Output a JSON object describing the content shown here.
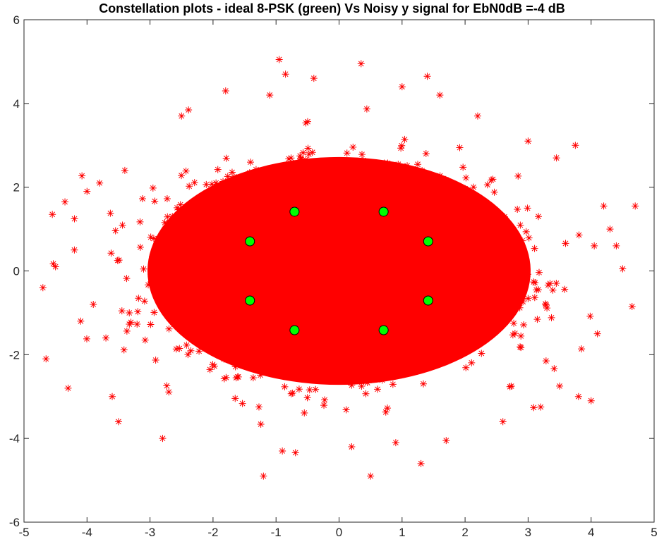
{
  "chart_data": {
    "type": "scatter",
    "title": "Constellation plots - ideal 8-PSK (green) Vs Noisy y signal for EbN0dB =-4 dB",
    "xlabel": "",
    "ylabel": "",
    "xlim": [
      -5,
      5
    ],
    "ylim": [
      -6,
      6
    ],
    "x_ticks": [
      "-5",
      "-4",
      "-3",
      "-2",
      "-1",
      "0",
      "1",
      "2",
      "3",
      "4",
      "5"
    ],
    "y_ticks": [
      "-6",
      "-4",
      "-2",
      "0",
      "2",
      "4",
      "6"
    ],
    "grid": false,
    "series": [
      {
        "marker": "asterisk",
        "color": "#ff0000",
        "dense_cloud": {
          "center": [
            0,
            0
          ],
          "x_extent": [
            -3.8,
            3.8
          ],
          "y_extent": [
            -3.3,
            3.5
          ]
        },
        "outlier_points": [
          [
            -4.7,
            -0.4
          ],
          [
            -4.65,
            -2.1
          ],
          [
            -4.55,
            1.35
          ],
          [
            -4.5,
            0.1
          ],
          [
            -4.35,
            1.65
          ],
          [
            -4.3,
            -2.8
          ],
          [
            -4.2,
            0.5
          ],
          [
            -4.1,
            -1.2
          ],
          [
            -4.0,
            1.9
          ],
          [
            -3.9,
            -0.8
          ],
          [
            -3.8,
            2.1
          ],
          [
            -3.7,
            -1.6
          ],
          [
            -3.6,
            -3.0
          ],
          [
            -3.5,
            -3.6
          ],
          [
            -3.4,
            2.4
          ],
          [
            -2.8,
            -4.0
          ],
          [
            -2.5,
            3.7
          ],
          [
            -1.8,
            4.3
          ],
          [
            -1.2,
            -4.9
          ],
          [
            -1.1,
            4.2
          ],
          [
            -0.95,
            5.05
          ],
          [
            -0.9,
            -4.3
          ],
          [
            -0.85,
            4.7
          ],
          [
            -0.4,
            4.6
          ],
          [
            0.2,
            -4.2
          ],
          [
            0.35,
            4.95
          ],
          [
            0.5,
            -4.9
          ],
          [
            0.9,
            -4.1
          ],
          [
            1.0,
            4.4
          ],
          [
            1.3,
            -4.6
          ],
          [
            1.4,
            4.65
          ],
          [
            1.6,
            4.2
          ],
          [
            1.7,
            -4.05
          ],
          [
            2.2,
            3.7
          ],
          [
            2.6,
            -3.6
          ],
          [
            3.0,
            3.1
          ],
          [
            3.2,
            -3.25
          ],
          [
            3.45,
            2.7
          ],
          [
            3.5,
            -2.75
          ],
          [
            3.75,
            3.0
          ],
          [
            3.8,
            -3.0
          ],
          [
            4.0,
            -3.1
          ],
          [
            4.05,
            0.6
          ],
          [
            4.2,
            1.55
          ],
          [
            4.4,
            0.6
          ],
          [
            4.5,
            0.05
          ],
          [
            4.65,
            -0.85
          ],
          [
            4.7,
            1.55
          ],
          [
            4.1,
            -1.5
          ],
          [
            4.3,
            1.0
          ]
        ]
      },
      {
        "marker": "circle",
        "color": "#00ff00",
        "points": [
          [
            -1.414,
            0.707
          ],
          [
            -0.707,
            1.414
          ],
          [
            0.707,
            1.414
          ],
          [
            1.414,
            0.707
          ],
          [
            1.414,
            -0.707
          ],
          [
            0.707,
            -1.414
          ],
          [
            -0.707,
            -1.414
          ],
          [
            -1.414,
            -0.707
          ]
        ]
      }
    ]
  }
}
